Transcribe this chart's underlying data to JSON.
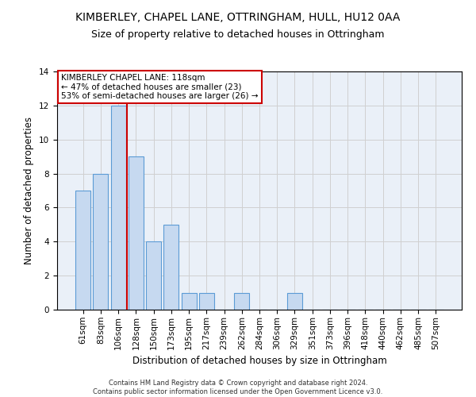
{
  "title1": "KIMBERLEY, CHAPEL LANE, OTTRINGHAM, HULL, HU12 0AA",
  "title2": "Size of property relative to detached houses in Ottringham",
  "xlabel": "Distribution of detached houses by size in Ottringham",
  "ylabel": "Number of detached properties",
  "footnote": "Contains HM Land Registry data © Crown copyright and database right 2024.\nContains public sector information licensed under the Open Government Licence v3.0.",
  "categories": [
    "61sqm",
    "83sqm",
    "106sqm",
    "128sqm",
    "150sqm",
    "173sqm",
    "195sqm",
    "217sqm",
    "239sqm",
    "262sqm",
    "284sqm",
    "306sqm",
    "329sqm",
    "351sqm",
    "373sqm",
    "396sqm",
    "418sqm",
    "440sqm",
    "462sqm",
    "485sqm",
    "507sqm"
  ],
  "values": [
    7,
    8,
    12,
    9,
    4,
    5,
    1,
    1,
    0,
    1,
    0,
    0,
    1,
    0,
    0,
    0,
    0,
    0,
    0,
    0,
    0
  ],
  "bar_color": "#c6d9f0",
  "bar_edge_color": "#5b9bd5",
  "vline_color": "#cc0000",
  "annotation_text": "KIMBERLEY CHAPEL LANE: 118sqm\n← 47% of detached houses are smaller (23)\n53% of semi-detached houses are larger (26) →",
  "annotation_box_color": "#ffffff",
  "annotation_box_edge_color": "#cc0000",
  "ylim": [
    0,
    14
  ],
  "yticks": [
    0,
    2,
    4,
    6,
    8,
    10,
    12,
    14
  ],
  "grid_color": "#d0d0d0",
  "bg_color": "#eaf0f8",
  "title1_fontsize": 10,
  "title2_fontsize": 9,
  "xlabel_fontsize": 8.5,
  "ylabel_fontsize": 8.5,
  "tick_fontsize": 7.5,
  "annotation_fontsize": 7.5,
  "footnote_fontsize": 6.0
}
